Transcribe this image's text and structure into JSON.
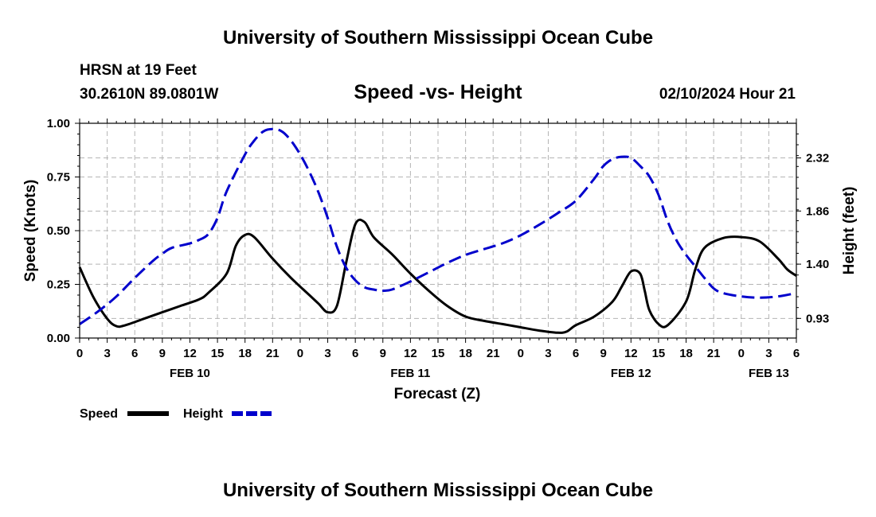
{
  "header": {
    "title": "University of Southern Mississippi Ocean Cube",
    "station": "HRSN at 19 Feet",
    "coords": "30.2610N  89.0801W",
    "chart_title": "Speed -vs- Height",
    "datetime": "02/10/2024 Hour 21"
  },
  "footer": {
    "title": "University of Southern Mississippi Ocean Cube"
  },
  "legend": {
    "speed": "Speed",
    "height": "Height"
  },
  "colors": {
    "speed": "#000000",
    "height": "#0000cc",
    "grid": "#b4b4b4"
  },
  "chart_data": {
    "type": "line",
    "title": "Speed -vs- Height",
    "xlabel": "Forecast (Z)",
    "ylabel": "Speed (Knots)",
    "y2label": "Height (feet)",
    "x_unit": "hours since FEB 10 00Z",
    "xlim": [
      0,
      78
    ],
    "ylim": [
      0,
      1.0
    ],
    "y2lim": [
      0.76,
      2.62
    ],
    "x_ticks": [
      0,
      3,
      6,
      9,
      12,
      15,
      18,
      21,
      24,
      27,
      30,
      33,
      36,
      39,
      42,
      45,
      48,
      51,
      54,
      57,
      60,
      63,
      66,
      69,
      72,
      75,
      78
    ],
    "x_tick_labels": [
      "0",
      "3",
      "6",
      "9",
      "12",
      "15",
      "18",
      "21",
      "0",
      "3",
      "6",
      "9",
      "12",
      "15",
      "18",
      "21",
      "0",
      "3",
      "6",
      "9",
      "12",
      "15",
      "18",
      "21",
      "0",
      "3",
      "6"
    ],
    "date_labels": [
      {
        "x": 12,
        "label": "FEB 10"
      },
      {
        "x": 36,
        "label": "FEB 11"
      },
      {
        "x": 60,
        "label": "FEB 12"
      },
      {
        "x": 75,
        "label": "FEB 13"
      }
    ],
    "y_ticks": [
      0.0,
      0.25,
      0.5,
      0.75,
      1.0
    ],
    "y_tick_labels": [
      "0.00",
      "0.25",
      "0.50",
      "0.75",
      "1.00"
    ],
    "y2_ticks": [
      0.93,
      1.4,
      1.86,
      2.32
    ],
    "y2_tick_labels": [
      "0.93",
      "1.40",
      "1.86",
      "2.32"
    ],
    "series": [
      {
        "name": "Speed",
        "axis": "left",
        "x": [
          0,
          1.5,
          3,
          4,
          5,
          7,
          9,
          11,
          13,
          14,
          16,
          17,
          18,
          19,
          21,
          23,
          25,
          26,
          27,
          28,
          29,
          30,
          31,
          32,
          34,
          36,
          38,
          40,
          42,
          44,
          46,
          48,
          50,
          52,
          53,
          54,
          56,
          58,
          59,
          60,
          61,
          61.5,
          62,
          63,
          64,
          66,
          67,
          68,
          70,
          72,
          74,
          76,
          77,
          78
        ],
        "values": [
          0.33,
          0.19,
          0.09,
          0.055,
          0.06,
          0.09,
          0.12,
          0.15,
          0.18,
          0.21,
          0.3,
          0.43,
          0.48,
          0.47,
          0.37,
          0.28,
          0.2,
          0.16,
          0.12,
          0.15,
          0.35,
          0.53,
          0.54,
          0.47,
          0.39,
          0.3,
          0.22,
          0.15,
          0.1,
          0.08,
          0.065,
          0.05,
          0.035,
          0.025,
          0.03,
          0.06,
          0.1,
          0.17,
          0.24,
          0.31,
          0.3,
          0.22,
          0.13,
          0.065,
          0.06,
          0.17,
          0.32,
          0.42,
          0.465,
          0.47,
          0.45,
          0.37,
          0.32,
          0.29
        ]
      },
      {
        "name": "Height",
        "axis": "right",
        "x": [
          0,
          2,
          4,
          6,
          8,
          9,
          10,
          12,
          13,
          14,
          15,
          16,
          18,
          19,
          20,
          21,
          22,
          23,
          24,
          25,
          26,
          27,
          28,
          29,
          30,
          31,
          32,
          33,
          34,
          36,
          38,
          40,
          42,
          44,
          46,
          48,
          50,
          52,
          54,
          56,
          57,
          58,
          59,
          60,
          61,
          62,
          63,
          64,
          65,
          66,
          67,
          68,
          69,
          70,
          72,
          74,
          76,
          78
        ],
        "values": [
          0.88,
          0.99,
          1.12,
          1.28,
          1.43,
          1.49,
          1.54,
          1.58,
          1.61,
          1.66,
          1.8,
          2.03,
          2.35,
          2.47,
          2.55,
          2.57,
          2.55,
          2.47,
          2.35,
          2.2,
          2.02,
          1.8,
          1.55,
          1.37,
          1.26,
          1.2,
          1.18,
          1.17,
          1.18,
          1.25,
          1.33,
          1.41,
          1.48,
          1.53,
          1.58,
          1.65,
          1.74,
          1.84,
          1.95,
          2.14,
          2.25,
          2.31,
          2.33,
          2.32,
          2.25,
          2.16,
          2.0,
          1.77,
          1.6,
          1.48,
          1.38,
          1.28,
          1.19,
          1.15,
          1.12,
          1.11,
          1.12,
          1.15
        ]
      }
    ]
  }
}
